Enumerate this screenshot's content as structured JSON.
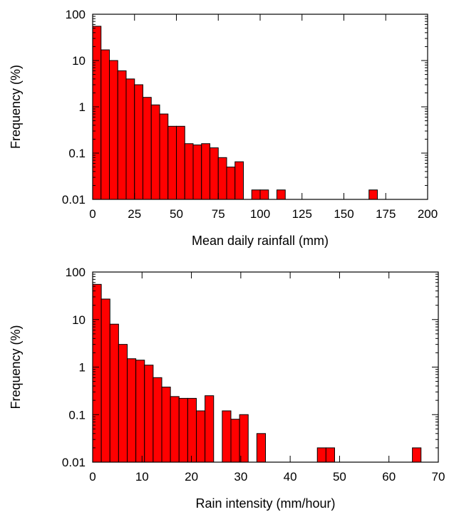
{
  "chart_data": [
    {
      "type": "bar",
      "xlabel": "Mean daily rainfall (mm)",
      "ylabel": "Frequency (%)",
      "xlim": [
        0,
        200
      ],
      "ylim": [
        0.01,
        100
      ],
      "yscale": "log",
      "bin_width": 5,
      "bar_color": "#ff0000",
      "xticks": [
        "0",
        "25",
        "50",
        "75",
        "100",
        "125",
        "150",
        "175",
        "200"
      ],
      "yticks": [
        "0.01",
        "0.1",
        "1",
        "10",
        "100"
      ],
      "grid": false,
      "series": [
        {
          "x": [
            0,
            5,
            10,
            15,
            20,
            25,
            30,
            35,
            40,
            45,
            50,
            55,
            60,
            65,
            70,
            75,
            80,
            85,
            95,
            100,
            110,
            165
          ],
          "values": [
            55,
            17,
            10,
            6,
            4,
            3,
            1.6,
            1.1,
            0.7,
            0.38,
            0.38,
            0.16,
            0.15,
            0.16,
            0.13,
            0.08,
            0.05,
            0.065,
            0.016,
            0.016,
            0.016,
            0.016
          ]
        }
      ]
    },
    {
      "type": "bar",
      "xlabel": "Rain intensity (mm/hour)",
      "ylabel": "Frequency (%)",
      "xlim": [
        0,
        70
      ],
      "ylim": [
        0.01,
        100
      ],
      "yscale": "log",
      "bin_width": 1.75,
      "bar_color": "#ff0000",
      "xticks": [
        "0",
        "10",
        "20",
        "30",
        "40",
        "50",
        "60",
        "70"
      ],
      "yticks": [
        "0.01",
        "0.1",
        "1",
        "10",
        "100"
      ],
      "grid": false,
      "series": [
        {
          "x": [
            0,
            1.75,
            3.5,
            5.25,
            7,
            8.75,
            10.5,
            12.25,
            14,
            15.75,
            17.5,
            19.25,
            21,
            22.75,
            26.25,
            28,
            29.75,
            33.25,
            45.5,
            47.25,
            64.75
          ],
          "values": [
            55,
            27,
            8,
            3,
            1.5,
            1.4,
            1.1,
            0.6,
            0.38,
            0.24,
            0.22,
            0.22,
            0.12,
            0.25,
            0.12,
            0.08,
            0.1,
            0.04,
            0.02,
            0.02,
            0.02
          ]
        }
      ]
    }
  ]
}
